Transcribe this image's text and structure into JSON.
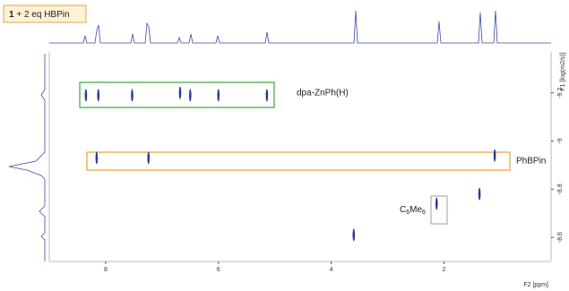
{
  "chart_data": {
    "type": "scatter",
    "title": {
      "bold": "1",
      "rest": "+ 2 eq HBPin"
    },
    "x_label": "F2 [ppm]",
    "y_label": "F1 [log(m2/s)]",
    "xlim": [
      9.0,
      0.1
    ],
    "xticks": [
      8,
      6,
      4,
      2
    ],
    "ylim": [
      -9.37,
      -8.5
    ],
    "yticks": [
      -9.2,
      -9.0,
      -8.8,
      -8.6
    ],
    "color": "#2b3a9c",
    "x": [
      8.35,
      8.13,
      7.53,
      6.68,
      6.5,
      6.0,
      5.14,
      8.16,
      7.24,
      1.1,
      2.13,
      3.6,
      1.37
    ],
    "values": [
      -9.19,
      -9.19,
      -9.19,
      -9.2,
      -9.19,
      -9.19,
      -9.19,
      -8.93,
      -8.93,
      -8.94,
      -8.74,
      -8.61,
      -8.78
    ],
    "annotations": {
      "dpa": "dpa-ZnPh(H)",
      "phbpin": "PhBPin",
      "c6me6": {
        "c": "C",
        "sub1": "6",
        "me": "Me",
        "sub2": "6"
      }
    }
  }
}
